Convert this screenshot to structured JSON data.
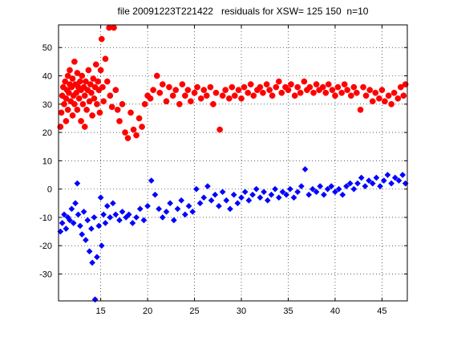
{
  "chart_data": {
    "type": "scatter",
    "title": "file 20091223T221422   residuals for XSW= 125 150  n=10",
    "xlim": [
      10.5,
      47.7
    ],
    "ylim": [
      -39.5,
      58
    ],
    "xticks": [
      15,
      20,
      25,
      30,
      35,
      40,
      45
    ],
    "yticks": [
      -30,
      -20,
      -10,
      0,
      10,
      20,
      30,
      40,
      50
    ],
    "grid": true,
    "series": [
      {
        "color": "#ff0000",
        "marker": "circle",
        "points": [
          [
            10.7,
            22
          ],
          [
            10.8,
            27
          ],
          [
            10.9,
            33
          ],
          [
            11.0,
            36
          ],
          [
            11.1,
            30
          ],
          [
            11.2,
            38
          ],
          [
            11.3,
            24
          ],
          [
            11.3,
            32
          ],
          [
            11.4,
            35
          ],
          [
            11.5,
            40
          ],
          [
            11.5,
            28
          ],
          [
            11.6,
            34
          ],
          [
            11.7,
            37
          ],
          [
            11.7,
            42
          ],
          [
            11.8,
            31
          ],
          [
            11.9,
            36
          ],
          [
            12.0,
            39
          ],
          [
            12.0,
            26
          ],
          [
            12.1,
            33
          ],
          [
            12.2,
            45
          ],
          [
            12.2,
            30
          ],
          [
            12.3,
            37
          ],
          [
            12.4,
            34
          ],
          [
            12.5,
            41
          ],
          [
            12.5,
            28
          ],
          [
            12.6,
            36
          ],
          [
            12.7,
            32
          ],
          [
            12.8,
            38
          ],
          [
            12.9,
            24
          ],
          [
            12.9,
            35
          ],
          [
            13.0,
            40
          ],
          [
            13.1,
            30
          ],
          [
            13.2,
            36
          ],
          [
            13.3,
            22
          ],
          [
            13.3,
            33
          ],
          [
            13.4,
            38
          ],
          [
            13.5,
            28
          ],
          [
            13.6,
            35
          ],
          [
            13.7,
            42
          ],
          [
            13.8,
            31
          ],
          [
            13.9,
            37
          ],
          [
            14.0,
            34
          ],
          [
            14.1,
            26
          ],
          [
            14.2,
            39
          ],
          [
            14.3,
            32
          ],
          [
            14.4,
            36
          ],
          [
            14.5,
            44
          ],
          [
            14.6,
            30
          ],
          [
            14.7,
            38
          ],
          [
            14.8,
            35
          ],
          [
            14.9,
            27
          ],
          [
            15.0,
            42
          ],
          [
            15.1,
            53
          ],
          [
            15.2,
            36
          ],
          [
            15.3,
            31
          ],
          [
            15.5,
            46
          ],
          [
            15.7,
            38
          ],
          [
            15.9,
            57
          ],
          [
            16.0,
            33
          ],
          [
            16.2,
            29
          ],
          [
            16.4,
            57
          ],
          [
            16.6,
            35
          ],
          [
            16.8,
            28
          ],
          [
            17.0,
            24
          ],
          [
            17.3,
            30
          ],
          [
            17.6,
            20
          ],
          [
            17.9,
            18
          ],
          [
            18.2,
            27
          ],
          [
            18.5,
            21
          ],
          [
            18.8,
            19
          ],
          [
            19.1,
            25
          ],
          [
            19.4,
            22
          ],
          [
            19.7,
            30
          ],
          [
            20.0,
            33
          ],
          [
            20.3,
            32
          ],
          [
            20.6,
            35
          ],
          [
            21.0,
            40
          ],
          [
            21.3,
            34
          ],
          [
            21.6,
            37
          ],
          [
            22.0,
            31
          ],
          [
            22.3,
            36
          ],
          [
            22.7,
            33
          ],
          [
            23.0,
            35
          ],
          [
            23.4,
            30
          ],
          [
            23.7,
            37
          ],
          [
            24.0,
            33
          ],
          [
            24.3,
            35
          ],
          [
            24.6,
            31
          ],
          [
            25.0,
            34
          ],
          [
            25.3,
            36
          ],
          [
            25.7,
            32
          ],
          [
            26.0,
            35
          ],
          [
            26.3,
            33
          ],
          [
            26.7,
            36
          ],
          [
            27.0,
            30
          ],
          [
            27.3,
            34
          ],
          [
            27.7,
            21
          ],
          [
            28.0,
            33
          ],
          [
            28.3,
            35
          ],
          [
            28.7,
            32
          ],
          [
            29.0,
            36
          ],
          [
            29.3,
            33
          ],
          [
            29.7,
            35
          ],
          [
            30.0,
            32
          ],
          [
            30.3,
            36
          ],
          [
            30.7,
            34
          ],
          [
            31.0,
            37
          ],
          [
            31.3,
            33
          ],
          [
            31.7,
            35
          ],
          [
            32.0,
            36
          ],
          [
            32.3,
            34
          ],
          [
            32.7,
            37
          ],
          [
            33.0,
            35
          ],
          [
            33.3,
            33
          ],
          [
            33.7,
            36
          ],
          [
            34.0,
            38
          ],
          [
            34.3,
            34
          ],
          [
            34.7,
            36
          ],
          [
            35.0,
            35
          ],
          [
            35.3,
            37
          ],
          [
            35.7,
            33
          ],
          [
            36.0,
            36
          ],
          [
            36.3,
            34
          ],
          [
            36.7,
            38
          ],
          [
            37.0,
            35
          ],
          [
            37.3,
            36
          ],
          [
            37.7,
            34
          ],
          [
            38.0,
            37
          ],
          [
            38.3,
            35
          ],
          [
            38.7,
            36
          ],
          [
            39.0,
            34
          ],
          [
            39.3,
            37
          ],
          [
            39.7,
            35
          ],
          [
            40.0,
            33
          ],
          [
            40.3,
            36
          ],
          [
            40.7,
            34
          ],
          [
            41.0,
            37
          ],
          [
            41.3,
            35
          ],
          [
            41.7,
            33
          ],
          [
            42.0,
            36
          ],
          [
            42.3,
            34
          ],
          [
            42.7,
            28
          ],
          [
            43.0,
            36
          ],
          [
            43.3,
            33
          ],
          [
            43.7,
            35
          ],
          [
            44.0,
            31
          ],
          [
            44.3,
            34
          ],
          [
            44.7,
            32
          ],
          [
            45.0,
            35
          ],
          [
            45.3,
            31
          ],
          [
            45.7,
            33
          ],
          [
            46.0,
            30
          ],
          [
            46.3,
            34
          ],
          [
            46.7,
            32
          ],
          [
            47.0,
            36
          ],
          [
            47.3,
            33
          ],
          [
            47.5,
            37
          ]
        ]
      },
      {
        "color": "#0000ff",
        "marker": "diamond",
        "points": [
          [
            10.7,
            -15
          ],
          [
            10.9,
            -12
          ],
          [
            11.1,
            -9
          ],
          [
            11.3,
            -14
          ],
          [
            11.5,
            -10
          ],
          [
            11.7,
            -11
          ],
          [
            11.9,
            -7
          ],
          [
            12.1,
            -12
          ],
          [
            12.3,
            -5
          ],
          [
            12.5,
            2
          ],
          [
            12.6,
            -9
          ],
          [
            12.8,
            -13
          ],
          [
            13.0,
            -16
          ],
          [
            13.2,
            -8
          ],
          [
            13.4,
            -18
          ],
          [
            13.6,
            -11
          ],
          [
            13.8,
            -22
          ],
          [
            14.0,
            -14
          ],
          [
            14.1,
            -26
          ],
          [
            14.3,
            -10
          ],
          [
            14.4,
            -39
          ],
          [
            14.6,
            -24
          ],
          [
            14.8,
            -13
          ],
          [
            15.0,
            -3
          ],
          [
            15.1,
            -20
          ],
          [
            15.3,
            -9
          ],
          [
            15.5,
            -12
          ],
          [
            15.7,
            -6
          ],
          [
            16.0,
            -10
          ],
          [
            16.3,
            -5
          ],
          [
            16.6,
            -9
          ],
          [
            17.0,
            -11
          ],
          [
            17.3,
            -8
          ],
          [
            17.7,
            -10
          ],
          [
            18.0,
            -9
          ],
          [
            18.4,
            -12
          ],
          [
            18.8,
            -10
          ],
          [
            19.2,
            -7
          ],
          [
            19.6,
            -11
          ],
          [
            20.0,
            -6
          ],
          [
            20.4,
            3
          ],
          [
            20.8,
            -2
          ],
          [
            21.2,
            -7
          ],
          [
            21.6,
            -10
          ],
          [
            22.0,
            -8
          ],
          [
            22.4,
            -5
          ],
          [
            22.8,
            -11
          ],
          [
            23.2,
            -7
          ],
          [
            23.6,
            -4
          ],
          [
            24.0,
            -9
          ],
          [
            24.4,
            -6
          ],
          [
            24.8,
            -8
          ],
          [
            25.2,
            0
          ],
          [
            25.6,
            -5
          ],
          [
            26.0,
            -3
          ],
          [
            26.4,
            1
          ],
          [
            26.8,
            -4
          ],
          [
            27.2,
            -2
          ],
          [
            27.6,
            -6
          ],
          [
            28.0,
            -1
          ],
          [
            28.4,
            -4
          ],
          [
            28.8,
            -7
          ],
          [
            29.2,
            -2
          ],
          [
            29.6,
            -5
          ],
          [
            30.0,
            -3
          ],
          [
            30.4,
            -1
          ],
          [
            30.8,
            -4
          ],
          [
            31.2,
            -2
          ],
          [
            31.6,
            0
          ],
          [
            32.0,
            -3
          ],
          [
            32.4,
            -1
          ],
          [
            32.8,
            -4
          ],
          [
            33.2,
            -2
          ],
          [
            33.6,
            0
          ],
          [
            34.0,
            -3
          ],
          [
            34.4,
            -1
          ],
          [
            34.8,
            -2
          ],
          [
            35.2,
            0
          ],
          [
            35.6,
            -3
          ],
          [
            36.0,
            -1
          ],
          [
            36.4,
            1
          ],
          [
            36.8,
            7
          ],
          [
            37.2,
            -2
          ],
          [
            37.6,
            0
          ],
          [
            38.0,
            -1
          ],
          [
            38.4,
            1
          ],
          [
            38.8,
            -2
          ],
          [
            39.2,
            0
          ],
          [
            39.6,
            1
          ],
          [
            40.0,
            -1
          ],
          [
            40.4,
            0
          ],
          [
            40.8,
            -2
          ],
          [
            41.2,
            1
          ],
          [
            41.6,
            2
          ],
          [
            42.0,
            0
          ],
          [
            42.4,
            2
          ],
          [
            42.8,
            4
          ],
          [
            43.2,
            1
          ],
          [
            43.6,
            3
          ],
          [
            44.0,
            2
          ],
          [
            44.4,
            4
          ],
          [
            44.8,
            1
          ],
          [
            45.2,
            3
          ],
          [
            45.6,
            5
          ],
          [
            46.0,
            2
          ],
          [
            46.4,
            4
          ],
          [
            46.8,
            3
          ],
          [
            47.2,
            5
          ],
          [
            47.5,
            2
          ]
        ]
      }
    ]
  }
}
